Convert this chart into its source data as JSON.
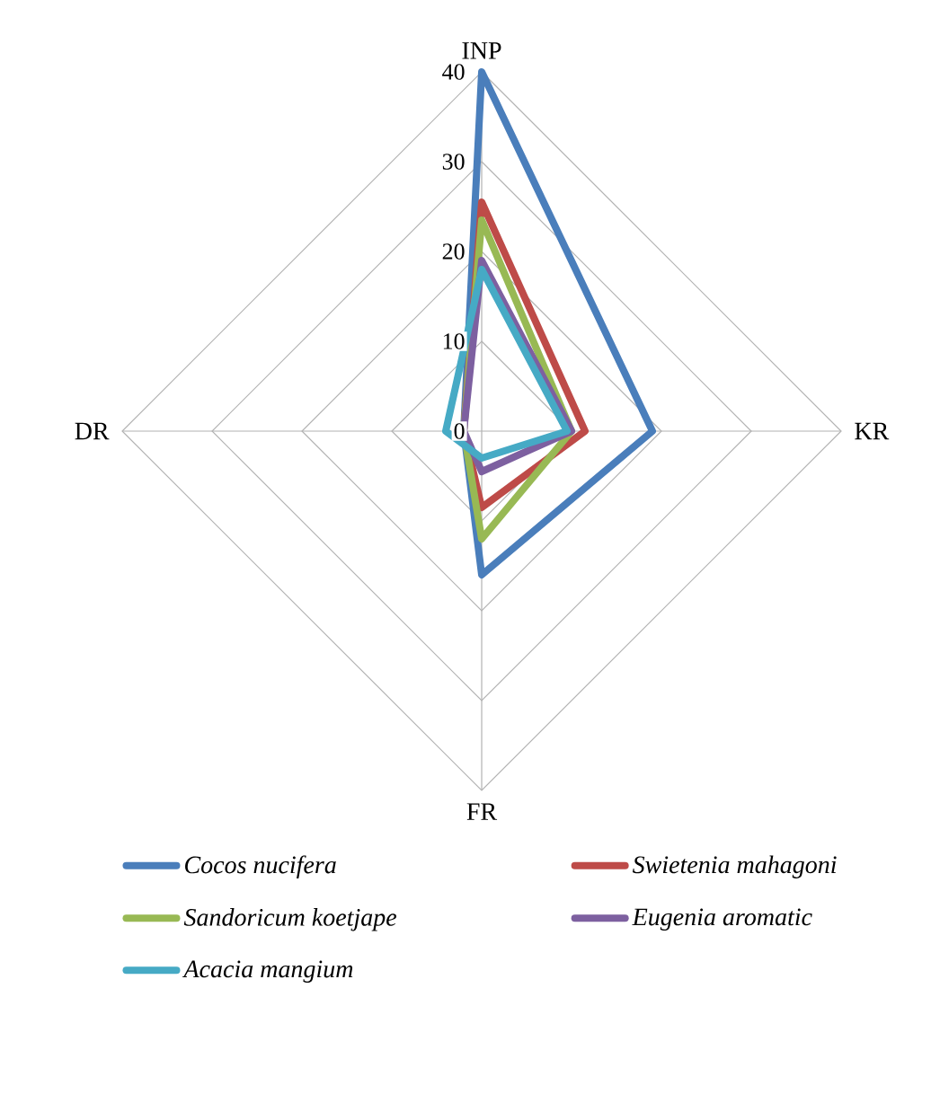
{
  "chart_data": {
    "type": "radar",
    "categories": [
      "INP",
      "KR",
      "FR",
      "DR"
    ],
    "series": [
      {
        "name": "*Cocos nucifera*",
        "color": "#4a7ebb",
        "values": [
          40,
          19,
          16,
          2
        ]
      },
      {
        "name": "*Swietenia mahagoni*",
        "color": "#be4b48",
        "values": [
          25.5,
          11.5,
          8.5,
          2
        ]
      },
      {
        "name": "*Sandoricum koetjape*",
        "color": "#98b954",
        "values": [
          23.5,
          10,
          12,
          2
        ]
      },
      {
        "name": "*Eugenia aromatic*",
        "color": "#7d60a0",
        "values": [
          19,
          10,
          4.5,
          2
        ]
      },
      {
        "name": "*Acacia mangium*",
        "color": "#46aac5",
        "values": [
          18,
          9.5,
          3,
          4
        ]
      }
    ],
    "ylim": [
      0,
      40
    ],
    "yticks": [
      0,
      10,
      20,
      30,
      40
    ],
    "grid": true,
    "legend": "bottom",
    "marker": "none",
    "line_style": "solid"
  }
}
